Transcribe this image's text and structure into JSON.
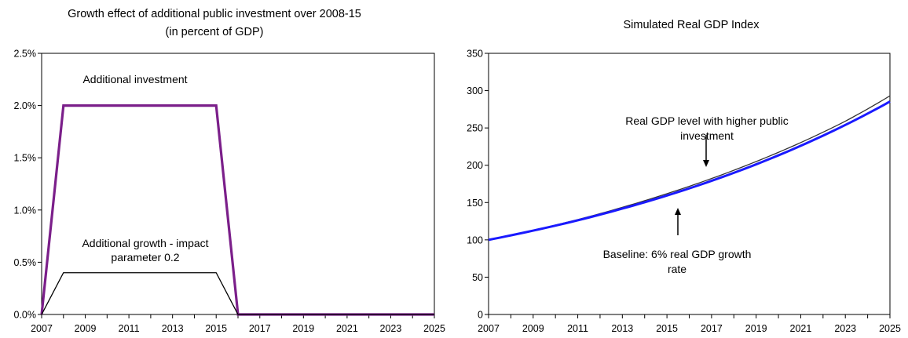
{
  "chart_data": [
    {
      "type": "line",
      "title": [
        "Growth effect of additional public investment over 2008-15",
        "(in percent of GDP)"
      ],
      "xlabel": "",
      "ylabel": "",
      "xlim": [
        2007,
        2025
      ],
      "ylim": [
        0,
        2.5
      ],
      "x_ticks": [
        "2007",
        "2009",
        "2011",
        "2013",
        "2015",
        "2017",
        "2019",
        "2021",
        "2023",
        "2025"
      ],
      "y_ticks": [
        "0.0%",
        "0.5%",
        "1.0%",
        "1.5%",
        "2.0%",
        "2.5%"
      ],
      "grid": false,
      "legend": "none",
      "series": [
        {
          "color": "#7b1f8a",
          "x": [
            2007,
            2008,
            2015,
            2016,
            2025
          ],
          "values": [
            0,
            2.0,
            2.0,
            0,
            0
          ]
        },
        {
          "color": "#000000",
          "x": [
            2007,
            2008,
            2015,
            2016,
            2025
          ],
          "values": [
            0,
            0.4,
            0.4,
            0,
            0
          ]
        }
      ],
      "annotations": [
        {
          "lines": [
            "Additional investment"
          ]
        },
        {
          "lines": [
            "Additional growth - impact",
            "parameter 0.2"
          ]
        }
      ]
    },
    {
      "type": "line",
      "title": [
        "Simulated Real GDP Index"
      ],
      "xlabel": "",
      "ylabel": "",
      "xlim": [
        2007,
        2025
      ],
      "ylim": [
        0,
        350
      ],
      "x_ticks": [
        "2007",
        "2009",
        "2011",
        "2013",
        "2015",
        "2017",
        "2019",
        "2021",
        "2023",
        "2025"
      ],
      "y_ticks": [
        "0",
        "50",
        "100",
        "150",
        "200",
        "250",
        "300",
        "350"
      ],
      "grid": false,
      "legend": "none",
      "series": [
        {
          "color": "#333333",
          "x": [
            2007,
            2009,
            2011,
            2013,
            2015,
            2017,
            2019,
            2021,
            2023,
            2025
          ],
          "values": [
            100,
            112.8,
            127.2,
            143.6,
            161.9,
            182.2,
            205.0,
            230.4,
            259.0,
            293
          ]
        },
        {
          "color": "#1a1aff",
          "x": [
            2007,
            2009,
            2011,
            2013,
            2015,
            2017,
            2019,
            2021,
            2023,
            2025
          ],
          "values": [
            100,
            112.4,
            126.2,
            141.9,
            159.4,
            179.1,
            201.2,
            226.1,
            254.0,
            285.4
          ]
        }
      ],
      "annotations": [
        {
          "lines": [
            "Real GDP level with higher public",
            "investment"
          ]
        },
        {
          "lines": [
            "Baseline: 6% real GDP growth",
            "rate"
          ]
        }
      ]
    }
  ]
}
